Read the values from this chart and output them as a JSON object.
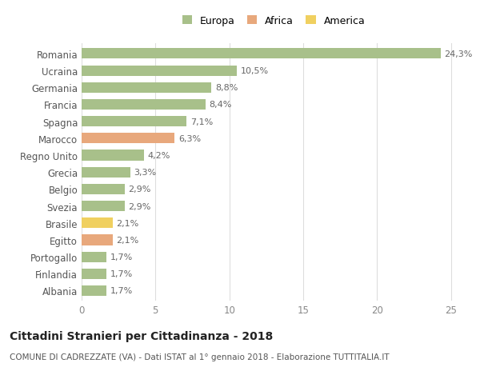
{
  "categories": [
    "Romania",
    "Ucraina",
    "Germania",
    "Francia",
    "Spagna",
    "Marocco",
    "Regno Unito",
    "Grecia",
    "Belgio",
    "Svezia",
    "Brasile",
    "Egitto",
    "Portogallo",
    "Finlandia",
    "Albania"
  ],
  "values": [
    24.3,
    10.5,
    8.8,
    8.4,
    7.1,
    6.3,
    4.2,
    3.3,
    2.9,
    2.9,
    2.1,
    2.1,
    1.7,
    1.7,
    1.7
  ],
  "labels": [
    "24,3%",
    "10,5%",
    "8,8%",
    "8,4%",
    "7,1%",
    "6,3%",
    "4,2%",
    "3,3%",
    "2,9%",
    "2,9%",
    "2,1%",
    "2,1%",
    "1,7%",
    "1,7%",
    "1,7%"
  ],
  "colors": [
    "#a8c08a",
    "#a8c08a",
    "#a8c08a",
    "#a8c08a",
    "#a8c08a",
    "#e8a87c",
    "#a8c08a",
    "#a8c08a",
    "#a8c08a",
    "#a8c08a",
    "#f0d060",
    "#e8a87c",
    "#a8c08a",
    "#a8c08a",
    "#a8c08a"
  ],
  "legend_labels": [
    "Europa",
    "Africa",
    "America"
  ],
  "legend_colors": [
    "#a8c08a",
    "#e8a87c",
    "#f0d060"
  ],
  "title": "Cittadini Stranieri per Cittadinanza - 2018",
  "subtitle": "COMUNE DI CADREZZATE (VA) - Dati ISTAT al 1° gennaio 2018 - Elaborazione TUTTITALIA.IT",
  "xlim": [
    0,
    26
  ],
  "xticks": [
    0,
    5,
    10,
    15,
    20,
    25
  ],
  "background_color": "#ffffff",
  "grid_color": "#dddddd",
  "bar_height": 0.62,
  "title_fontsize": 10,
  "subtitle_fontsize": 7.5,
  "label_fontsize": 8,
  "tick_fontsize": 8.5
}
